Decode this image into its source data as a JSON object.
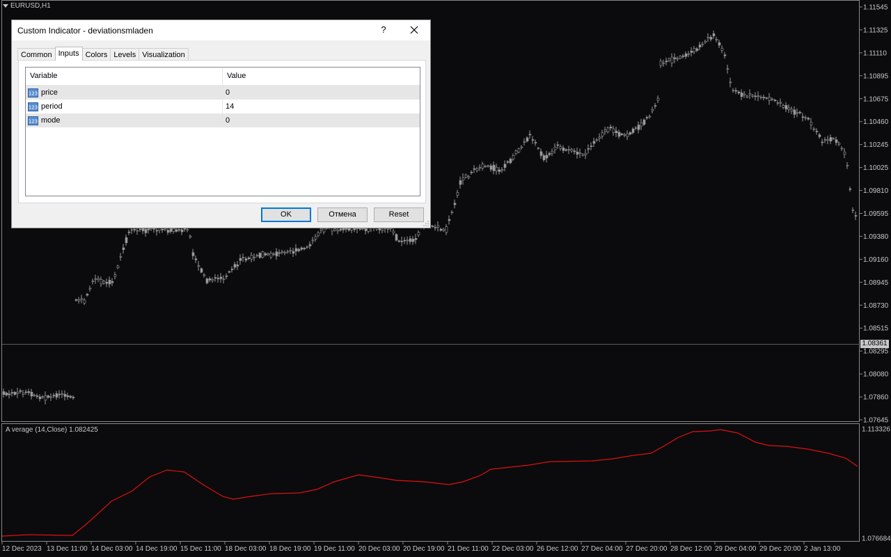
{
  "chart": {
    "symbol_label": "EURUSD,H1",
    "price_ticks": [
      "1.11545",
      "1.11325",
      "1.11110",
      "1.10895",
      "1.10675",
      "1.10460",
      "1.10245",
      "1.10025",
      "1.09810",
      "1.09595",
      "1.09380",
      "1.09160",
      "1.08945",
      "1.08730",
      "1.08515",
      "1.08295",
      "1.08080",
      "1.07860",
      "1.07645"
    ],
    "current_price": "1.08361",
    "indicator_label": "A verage (14,Close) 1.082425",
    "indicator_ticks": [
      "1.113326",
      "1.076684"
    ],
    "time_ticks": [
      "12 Dec 2023",
      "13 Dec 11:00",
      "14 Dec 03:00",
      "14 Dec 19:00",
      "15 Dec 11:00",
      "18 Dec 03:00",
      "18 Dec 19:00",
      "19 Dec 11:00",
      "20 Dec 03:00",
      "20 Dec 19:00",
      "21 Dec 11:00",
      "22 Dec 03:00",
      "26 Dec 12:00",
      "27 Dec 04:00",
      "27 Dec 20:00",
      "28 Dec 12:00",
      "29 Dec 04:00",
      "29 Dec 20:00",
      "2 Jan 13:00"
    ],
    "colors": {
      "background": "#0b0b0d",
      "candles": "#9a9a9a",
      "indicator_line": "#e01010",
      "axis_text": "#c8c8c8"
    }
  },
  "dialog": {
    "title": "Custom Indicator - deviationsmladen",
    "help_label": "?",
    "close_icon": "close-icon",
    "tabs": [
      {
        "label": "Common",
        "active": false
      },
      {
        "label": "Inputs",
        "active": true
      },
      {
        "label": "Colors",
        "active": false
      },
      {
        "label": "Levels",
        "active": false
      },
      {
        "label": "Visualization",
        "active": false
      }
    ],
    "columns": {
      "variable": "Variable",
      "value": "Value"
    },
    "params": [
      {
        "name": "price",
        "value": "0",
        "icon": "numeric-123-icon"
      },
      {
        "name": "period",
        "value": "14",
        "icon": "numeric-123-icon"
      },
      {
        "name": "mode",
        "value": "0",
        "icon": "numeric-123-icon"
      }
    ],
    "buttons": {
      "ok": "OK",
      "cancel": "Отмена",
      "reset": "Reset"
    }
  }
}
